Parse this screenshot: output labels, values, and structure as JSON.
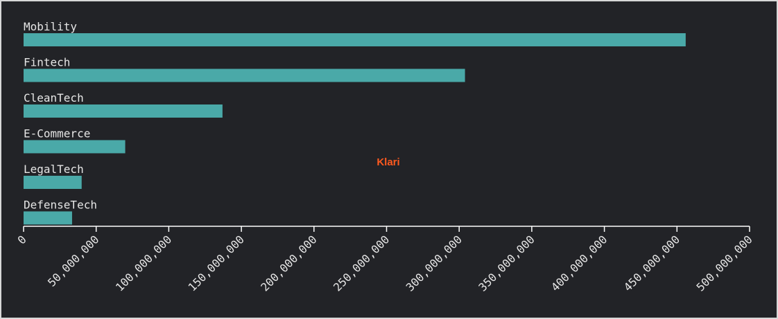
{
  "chart_data": {
    "type": "bar",
    "orientation": "horizontal",
    "categories": [
      "Mobility",
      "Fintech",
      "CleanTech",
      "E-Commerce",
      "LegalTech",
      "DefenseTech"
    ],
    "values": [
      456000000,
      304000000,
      137000000,
      70000000,
      40000000,
      33400000
    ],
    "color": "#4aa9a8",
    "xlim": [
      0,
      500000000
    ],
    "xticks": [
      0,
      {
        "value": 50000000,
        "label": "50,000,000"
      },
      {
        "value": 100000000,
        "label": "100,000,000"
      },
      {
        "value": 150000000,
        "label": "150,000,000"
      },
      {
        "value": 200000000,
        "label": "200,000,000"
      },
      {
        "value": 250000000,
        "label": "250,000,000"
      },
      {
        "value": 300000000,
        "label": "300,000,000"
      },
      {
        "value": 350000000,
        "label": "350,000,000"
      },
      {
        "value": 400000000,
        "label": "400,000,000"
      },
      {
        "value": 450000000,
        "label": "450,000,000"
      },
      {
        "value": 500000000,
        "label": "500,000,000"
      }
    ],
    "annotation": "Klari",
    "annotation_color": "#ff5a1f"
  }
}
